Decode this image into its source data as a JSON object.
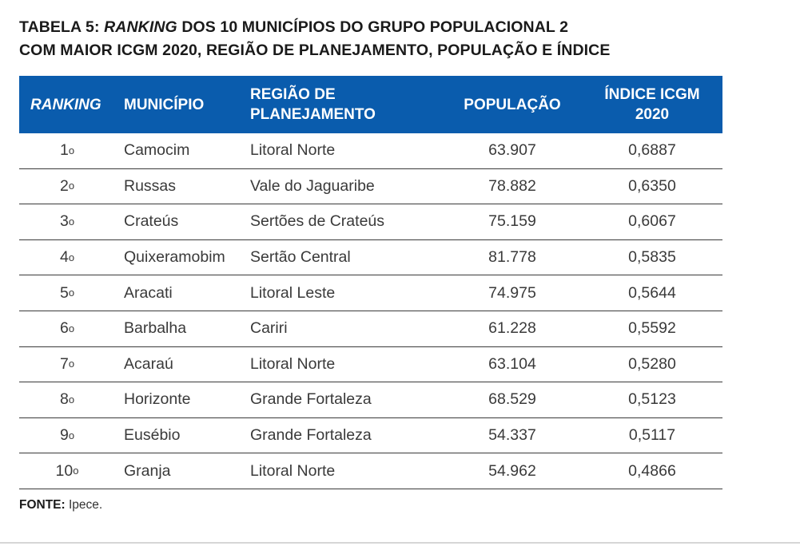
{
  "title": {
    "prefix": "TABELA 5: ",
    "emphasis": "RANKING",
    "line1_rest": " DOS 10 MUNICÍPIOS DO GRUPO POPULACIONAL 2",
    "line2": "COM MAIOR ICGM 2020, REGIÃO DE PLANEJAMENTO, POPULAÇÃO E ÍNDICE"
  },
  "colors": {
    "header_bg": "#0a5cad",
    "header_text": "#ffffff",
    "row_rule": "#3a3a3a"
  },
  "table": {
    "headers": {
      "ranking": "RANKING",
      "municipio": "MUNICÍPIO",
      "regiao_line1": "REGIÃO DE",
      "regiao_line2": "PLANEJAMENTO",
      "populacao": "POPULAÇÃO",
      "indice_line1": "ÍNDICE ICGM",
      "indice_line2": "2020"
    },
    "rows": [
      {
        "rank": "1",
        "ordinal": "o",
        "municipio": "Camocim",
        "regiao": "Litoral Norte",
        "populacao": "63.907",
        "indice": "0,6887"
      },
      {
        "rank": "2",
        "ordinal": "o",
        "municipio": "Russas",
        "regiao": "Vale do Jaguaribe",
        "populacao": "78.882",
        "indice": "0,6350"
      },
      {
        "rank": "3",
        "ordinal": "o",
        "municipio": "Crateús",
        "regiao": "Sertões de Crateús",
        "populacao": "75.159",
        "indice": "0,6067"
      },
      {
        "rank": "4",
        "ordinal": "o",
        "municipio": "Quixeramobim",
        "regiao": "Sertão Central",
        "populacao": "81.778",
        "indice": "0,5835"
      },
      {
        "rank": "5",
        "ordinal": "o",
        "municipio": "Aracati",
        "regiao": "Litoral Leste",
        "populacao": "74.975",
        "indice": "0,5644"
      },
      {
        "rank": "6",
        "ordinal": "o",
        "municipio": "Barbalha",
        "regiao": "Cariri",
        "populacao": "61.228",
        "indice": "0,5592"
      },
      {
        "rank": "7",
        "ordinal": "o",
        "municipio": "Acaraú",
        "regiao": "Litoral Norte",
        "populacao": "63.104",
        "indice": "0,5280"
      },
      {
        "rank": "8",
        "ordinal": "o",
        "municipio": "Horizonte",
        "regiao": "Grande Fortaleza",
        "populacao": "68.529",
        "indice": "0,5123"
      },
      {
        "rank": "9",
        "ordinal": "o",
        "municipio": "Eusébio",
        "regiao": "Grande Fortaleza",
        "populacao": "54.337",
        "indice": "0,5117"
      },
      {
        "rank": "10",
        "ordinal": "o",
        "municipio": "Granja",
        "regiao": "Litoral Norte",
        "populacao": "54.962",
        "indice": "0,4866"
      }
    ]
  },
  "source": {
    "label": "FONTE:",
    "text": " Ipece."
  }
}
